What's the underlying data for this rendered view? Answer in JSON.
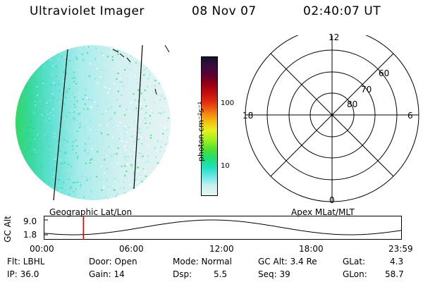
{
  "header": {
    "instrument": "Ultraviolet Imager",
    "date": "08 Nov 07",
    "time": "02:40:07 UT"
  },
  "colorbar": {
    "unit_label": "photon cm⁻²s⁻¹",
    "tick_labels": [
      "100",
      "10"
    ],
    "colors": [
      "#1a0f2e",
      "#3b0c3f",
      "#5c0030",
      "#9a0010",
      "#c81010",
      "#e63010",
      "#f07a10",
      "#f5c010",
      "#e6f020",
      "#a0f020",
      "#50e030",
      "#20e070",
      "#20e0c0",
      "#70e8e8",
      "#c8f0f0",
      "#e8f4f4"
    ]
  },
  "polar": {
    "mlt_labels": [
      "12",
      "18",
      "6",
      "0"
    ],
    "lat_labels": [
      "60",
      "70",
      "80"
    ]
  },
  "projection": {
    "left": "Geographic Lat/Lon",
    "right": "Apex MLat/MLT"
  },
  "altitude_plot": {
    "ylabel": "GC Alt",
    "y_ticks": [
      "9.0",
      "1.8"
    ],
    "x_ticks": [
      "00:00",
      "06:00",
      "12:00",
      "18:00",
      "23:59"
    ],
    "marker_time": "02:40",
    "marker_color": "#e00000"
  },
  "params": {
    "flt": "Flt: LBHL",
    "ip": "IP: 36.0",
    "door": "Door: Open",
    "gain": "Gain: 14",
    "mode": "Mode: Normal",
    "dsp_label": "Dsp:",
    "dsp_value": "5.5",
    "gc_alt": "GC Alt: 3.4 Re",
    "seq": "Seq: 39",
    "glat_label": "GLat:",
    "glat_value": "4.3",
    "glon_label": "GLon:",
    "glon_value": "58.7"
  }
}
